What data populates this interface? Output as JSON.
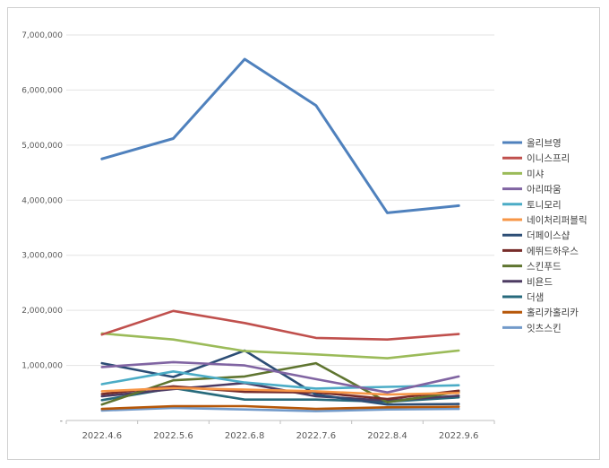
{
  "chart_data": {
    "type": "line",
    "title": "",
    "xlabel": "",
    "ylabel": "",
    "categories": [
      "2022.4.6",
      "2022.5.6",
      "2022.6.8",
      "2022.7.6",
      "2022.8.4",
      "2022.9.6"
    ],
    "ylim": [
      0,
      7000000
    ],
    "yticks": [
      0,
      1000000,
      2000000,
      3000000,
      4000000,
      5000000,
      6000000,
      7000000
    ],
    "ytick_labels": [
      "-",
      "1,000,000",
      "2,000,000",
      "3,000,000",
      "4,000,000",
      "5,000,000",
      "6,000,000",
      "7,000,000"
    ],
    "grid": "horizontal",
    "legend_position": "right",
    "series": [
      {
        "name": "올리브영",
        "color": "#4f81bd",
        "values": [
          4750000,
          5120000,
          6560000,
          5720000,
          3770000,
          3900000
        ]
      },
      {
        "name": "이니스프리",
        "color": "#c0504d",
        "values": [
          1560000,
          1990000,
          1770000,
          1500000,
          1470000,
          1570000
        ]
      },
      {
        "name": "미샤",
        "color": "#9bbb59",
        "values": [
          1580000,
          1470000,
          1260000,
          1200000,
          1130000,
          1270000
        ]
      },
      {
        "name": "아리따움",
        "color": "#8064a2",
        "values": [
          970000,
          1060000,
          1000000,
          750000,
          510000,
          800000
        ]
      },
      {
        "name": "토니모리",
        "color": "#4bacc6",
        "values": [
          660000,
          890000,
          690000,
          580000,
          610000,
          640000
        ]
      },
      {
        "name": "네이처리퍼블릭",
        "color": "#f79646",
        "values": [
          530000,
          590000,
          560000,
          530000,
          470000,
          500000
        ]
      },
      {
        "name": "더페이스샵",
        "color": "#2c4d75",
        "values": [
          1040000,
          790000,
          1270000,
          470000,
          290000,
          300000
        ]
      },
      {
        "name": "에뛰드하우스",
        "color": "#772c2a",
        "values": [
          480000,
          620000,
          520000,
          510000,
          390000,
          540000
        ]
      },
      {
        "name": "스킨푸드",
        "color": "#5f7530",
        "values": [
          290000,
          730000,
          800000,
          1040000,
          330000,
          520000
        ]
      },
      {
        "name": "비욘드",
        "color": "#4d3b62",
        "values": [
          440000,
          570000,
          680000,
          440000,
          360000,
          450000
        ]
      },
      {
        "name": "더샘",
        "color": "#276a7c",
        "values": [
          370000,
          590000,
          380000,
          380000,
          340000,
          420000
        ]
      },
      {
        "name": "홀리카홀리카",
        "color": "#b65708",
        "values": [
          210000,
          260000,
          260000,
          210000,
          240000,
          250000
        ]
      },
      {
        "name": "잇츠스킨",
        "color": "#729aca",
        "values": [
          180000,
          230000,
          200000,
          170000,
          200000,
          210000
        ]
      }
    ]
  }
}
